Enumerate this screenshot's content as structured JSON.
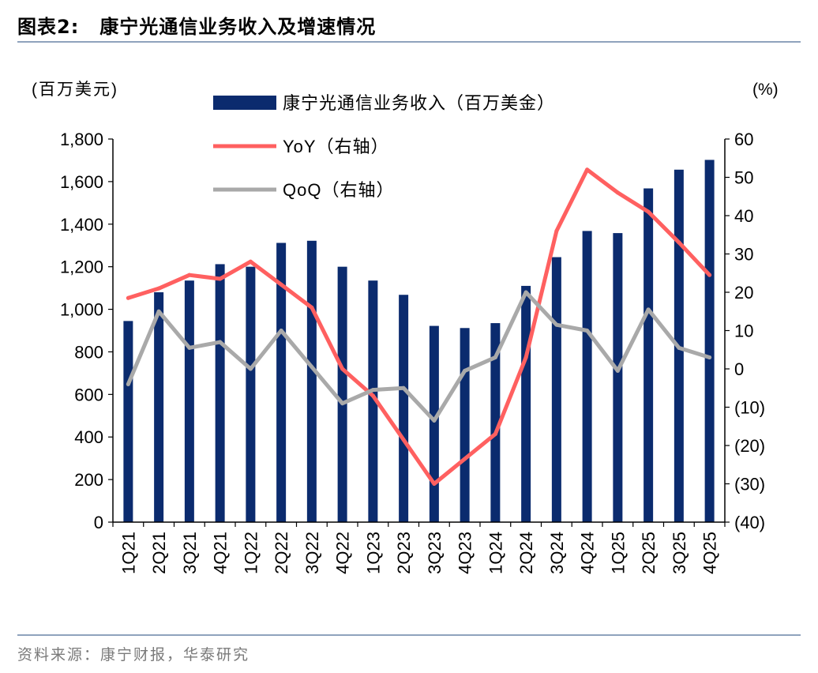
{
  "header": {
    "label": "图表2:",
    "title": "康宁光通信业务收入及增速情况"
  },
  "footer": {
    "source": "资料来源：康宁财报，华泰研究"
  },
  "colors": {
    "bar": "#0b2b6e",
    "yoy": "#ff6060",
    "qoq": "#a9a9a9",
    "rule": "#8fa3bd"
  },
  "chart_data": {
    "type": "bar",
    "categories": [
      "1Q21",
      "2Q21",
      "3Q21",
      "4Q21",
      "1Q22",
      "2Q22",
      "3Q22",
      "4Q22",
      "1Q23",
      "2Q23",
      "3Q23",
      "4Q23",
      "1Q24",
      "2Q24",
      "3Q24",
      "4Q24",
      "1Q25",
      "2Q25",
      "3Q25",
      "4Q25"
    ],
    "series": [
      {
        "name": "康宁光通信业务收入（百万美金）",
        "type": "bar",
        "axis": "left",
        "values": [
          945,
          1080,
          1135,
          1212,
          1200,
          1312,
          1322,
          1200,
          1135,
          1068,
          922,
          912,
          935,
          1110,
          1245,
          1368,
          1358,
          1568,
          1656,
          1702
        ]
      },
      {
        "name": "YoY（右轴）",
        "type": "line",
        "axis": "right",
        "values": [
          18.5,
          21,
          24.5,
          23.5,
          28,
          22,
          16,
          0,
          -7,
          -18.5,
          -30,
          -23.5,
          -17,
          3,
          36,
          52,
          46,
          41,
          33,
          24.5
        ]
      },
      {
        "name": "QoQ（右轴）",
        "type": "line",
        "axis": "right",
        "values": [
          -4,
          15,
          5.5,
          7,
          0,
          10,
          0.5,
          -9,
          -5.5,
          -5,
          -13.5,
          -0.5,
          3,
          20,
          11.5,
          10,
          -0.5,
          15.5,
          5.5,
          3
        ]
      }
    ],
    "y_left": {
      "label": "(百万美元)",
      "min": 0,
      "max": 1800,
      "step": 200,
      "ticks": [
        "0",
        "200",
        "400",
        "600",
        "800",
        "1,000",
        "1,200",
        "1,400",
        "1,600",
        "1,800"
      ]
    },
    "y_right": {
      "label": "(%)",
      "min": -40,
      "max": 60,
      "step": 10,
      "ticks": [
        "(40)",
        "(30)",
        "(20)",
        "(10)",
        "0",
        "10",
        "20",
        "30",
        "40",
        "50",
        "60"
      ]
    },
    "legend": "top-center",
    "grid": false
  }
}
